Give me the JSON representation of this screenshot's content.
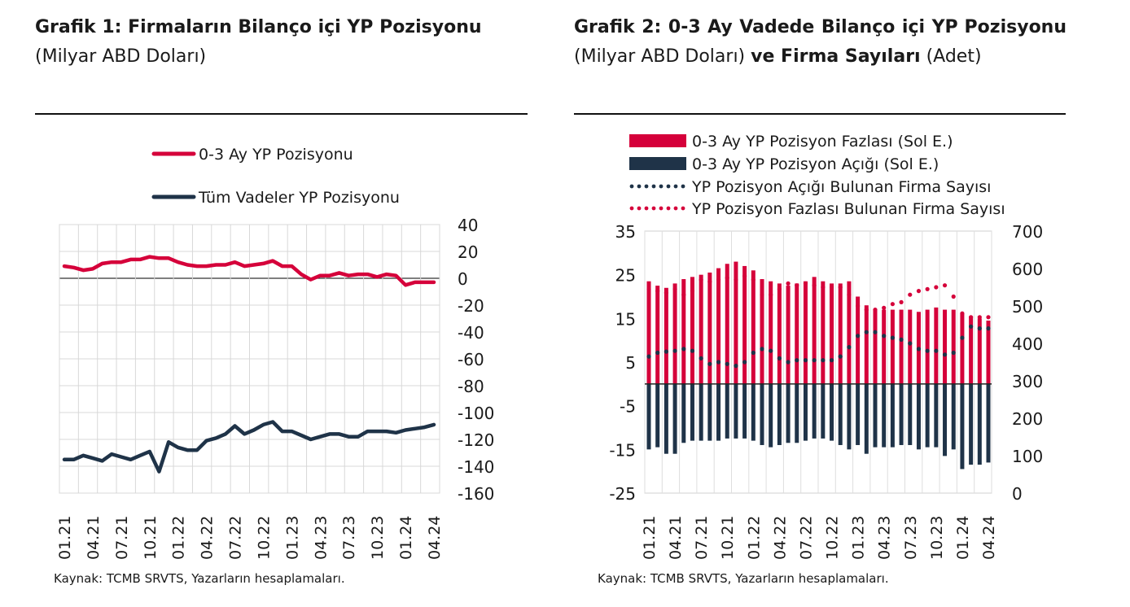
{
  "chart_data": [
    {
      "type": "line",
      "title_bold": "Grafik 1: Firmaların Bilanço içi YP Pozisyonu",
      "title_normal": "(Milyar ABD Doları)",
      "source": "Kaynak: TCMB SRVTS, Yazarların hesaplamaları.",
      "x_tick_labels": [
        "01.21",
        "04.21",
        "07.21",
        "10.21",
        "01.22",
        "04.22",
        "07.22",
        "10.22",
        "01.23",
        "04.23",
        "07.23",
        "10.23",
        "01.24",
        "04.24"
      ],
      "y_tick_labels": [
        "40",
        "20",
        "0",
        "-20",
        "-40",
        "-60",
        "-80",
        "-100",
        "-120",
        "-140",
        "-160"
      ],
      "ylim": [
        -160,
        40
      ],
      "grid": true,
      "legend_position": "top",
      "series": [
        {
          "name": "0-3 Ay YP Pozisyonu",
          "color": "#d5003a",
          "values": [
            9,
            8,
            6,
            7,
            11,
            12,
            12,
            14,
            14,
            16,
            15,
            15,
            12,
            10,
            9,
            9,
            10,
            10,
            12,
            9,
            10,
            11,
            13,
            9,
            9,
            3,
            -1,
            2,
            2,
            4,
            2,
            3,
            3,
            1,
            3,
            2,
            -5,
            -3,
            -3,
            -3
          ]
        },
        {
          "name": "Tüm Vadeler YP Pozisyonu",
          "color": "#1f3348",
          "values": [
            -135,
            -135,
            -132,
            -134,
            -136,
            -131,
            -133,
            -135,
            -132,
            -129,
            -144,
            -122,
            -126,
            -128,
            -128,
            -121,
            -119,
            -116,
            -110,
            -116,
            -113,
            -109,
            -107,
            -114,
            -114,
            -117,
            -120,
            -118,
            -116,
            -116,
            -118,
            -118,
            -114,
            -114,
            -114,
            -115,
            -113,
            -112,
            -111,
            -109
          ]
        }
      ]
    },
    {
      "type": "bar",
      "title_bold_1": "Grafik 2: 0-3 Ay Vadede Bilanço içi YP",
      "title_bold_2": "Pozisyonu",
      "title_normal_1": "(Milyar ABD Doları)",
      "title_bold_3": "ve Firma Sayıları",
      "title_normal_2": "(Adet)",
      "source": "Kaynak: TCMB SRVTS, Yazarların hesaplamaları.",
      "x_tick_labels": [
        "01.21",
        "04.21",
        "07.21",
        "10.21",
        "01.22",
        "04.22",
        "07.22",
        "10.22",
        "01.23",
        "04.23",
        "07.23",
        "10.23",
        "01.24",
        "04.24"
      ],
      "y_left_tick_labels": [
        "35",
        "25",
        "15",
        "5",
        "-5",
        "-15",
        "-25"
      ],
      "y_right_tick_labels": [
        "700",
        "600",
        "500",
        "400",
        "300",
        "200",
        "100",
        "0"
      ],
      "ylim_left": [
        -25,
        35
      ],
      "ylim_right": [
        0,
        700
      ],
      "legend_position": "top",
      "series": [
        {
          "name": "0-3 Ay YP Pozisyon Fazlası (Sol E.)",
          "kind": "bar",
          "axis": "left",
          "color": "#d5003a",
          "values": [
            23.5,
            22.5,
            22,
            23,
            24,
            24.5,
            25,
            25.5,
            26.5,
            27.5,
            28,
            27,
            26,
            24,
            23.5,
            23,
            22.5,
            23,
            23.5,
            24.5,
            23.5,
            23,
            23,
            23.5,
            20,
            18,
            17,
            17,
            17,
            17,
            17,
            16.5,
            17,
            17.5,
            17,
            17,
            16,
            15.5,
            15,
            14.5
          ]
        },
        {
          "name": "0-3 Ay YP Pozisyon Açığı (Sol E.)",
          "kind": "bar",
          "axis": "left",
          "color": "#1f3348",
          "values": [
            -15,
            -14.5,
            -16,
            -16,
            -13.5,
            -13,
            -13,
            -13,
            -13,
            -12.5,
            -12.5,
            -12.5,
            -13,
            -14,
            -14.5,
            -14,
            -13.5,
            -13.5,
            -13,
            -12.5,
            -12.5,
            -13,
            -14,
            -15,
            -14,
            -16,
            -14.5,
            -14.5,
            -14.5,
            -14,
            -14,
            -15,
            -14.5,
            -14.5,
            -16.5,
            -15,
            -19.5,
            -18.5,
            -18.5,
            -18
          ]
        },
        {
          "name": "YP Pozisyon Açığı Bulunan Firma Sayısı",
          "kind": "dotted-line",
          "axis": "right",
          "color": "#1f3348",
          "values": [
            365,
            375,
            378,
            380,
            385,
            380,
            360,
            345,
            350,
            345,
            340,
            350,
            375,
            385,
            380,
            360,
            350,
            355,
            355,
            355,
            355,
            355,
            365,
            390,
            420,
            430,
            430,
            420,
            415,
            410,
            400,
            385,
            380,
            380,
            370,
            375,
            415,
            445,
            440,
            440
          ]
        },
        {
          "name": "YP Pozisyon Fazlası Bulunan Firma Sayısı",
          "kind": "dotted-line",
          "axis": "right",
          "color": "#d5003a",
          "values": [
            545,
            540,
            535,
            545,
            530,
            540,
            570,
            565,
            570,
            575,
            570,
            580,
            570,
            530,
            530,
            545,
            560,
            555,
            560,
            555,
            550,
            550,
            550,
            530,
            500,
            490,
            490,
            495,
            505,
            510,
            530,
            540,
            545,
            550,
            555,
            525,
            480,
            470,
            470,
            470
          ]
        }
      ]
    }
  ]
}
